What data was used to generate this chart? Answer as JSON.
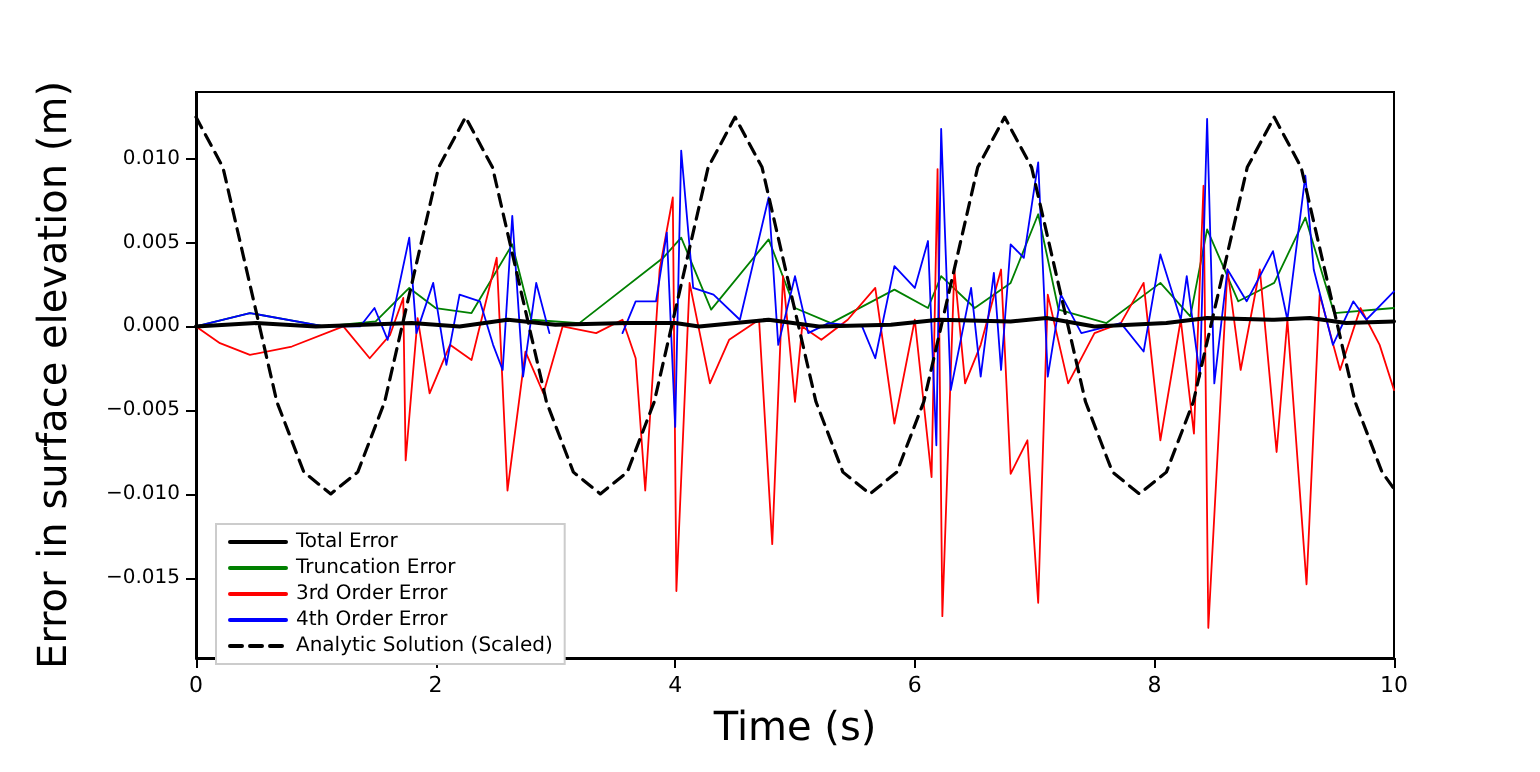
{
  "chart_data": {
    "type": "line",
    "xlabel": "Time (s)",
    "ylabel": "Error in surface elevation (m)",
    "xlim": [
      0,
      10
    ],
    "xticks": [
      0,
      2,
      4,
      6,
      8,
      10
    ],
    "ylim": [
      -0.0198,
      0.014
    ],
    "yticks": [
      {
        "value": -0.015,
        "label": "−0.015"
      },
      {
        "value": -0.01,
        "label": "−0.010"
      },
      {
        "value": -0.005,
        "label": "−0.005"
      },
      {
        "value": 0,
        "label": "0.000"
      },
      {
        "value": 0.005,
        "label": "0.005"
      },
      {
        "value": 0.01,
        "label": "0.010"
      }
    ],
    "legend": "bottom left",
    "grid": false,
    "marker": "none",
    "series": [
      {
        "name": "Total Error",
        "color": "#000000",
        "x": [
          0,
          0.5,
          1.0,
          1.8,
          2.2,
          2.6,
          3.0,
          3.6,
          4.0,
          4.2,
          4.78,
          5.2,
          5.8,
          6.2,
          6.8,
          7.1,
          7.5,
          8.1,
          8.44,
          9.0,
          9.3,
          9.6,
          10
        ],
        "values": [
          0,
          0.0002,
          0,
          0.0002,
          0,
          0.0004,
          0.0001,
          0.0002,
          0.0002,
          0,
          0.0004,
          0,
          0.0001,
          0.0004,
          0.0003,
          0.0005,
          0,
          0.0002,
          0.0005,
          0.0004,
          0.0005,
          0.0002,
          0.0003
        ]
      },
      {
        "name": "Truncation Error",
        "color": "#008000",
        "x": [
          0,
          0.45,
          1.07,
          1.5,
          1.78,
          2.0,
          2.3,
          2.64,
          2.8,
          3.2,
          3.9,
          4.05,
          4.3,
          4.78,
          5.0,
          5.3,
          5.83,
          6.11,
          6.22,
          6.5,
          6.8,
          7.03,
          7.2,
          7.6,
          8.05,
          8.3,
          8.44,
          8.7,
          9.0,
          9.26,
          9.5,
          10
        ],
        "values": [
          0,
          0.0008,
          0,
          0.0003,
          0.0023,
          0.0011,
          0.0008,
          0.0049,
          0.0004,
          0.0002,
          0.0041,
          0.0053,
          0.001,
          0.0052,
          0.0011,
          0.0002,
          0.0022,
          0.0011,
          0.003,
          0.0011,
          0.0026,
          0.0067,
          0.001,
          0.0002,
          0.0026,
          0.0006,
          0.0058,
          0.0015,
          0.0026,
          0.0065,
          0.0008,
          0.0011
        ]
      },
      {
        "name": "3rd Order Error",
        "color": "#ff0000",
        "x": [
          0,
          0.2,
          0.45,
          0.8,
          1.23,
          1.45,
          1.62,
          1.73,
          1.75,
          1.85,
          1.95,
          2.12,
          2.3,
          2.51,
          2.6,
          2.75,
          2.9,
          3.06,
          3.34,
          3.56,
          3.67,
          3.75,
          3.87,
          3.98,
          4.01,
          4.12,
          4.29,
          4.45,
          4.7,
          4.81,
          4.9,
          5.0,
          5.06,
          5.22,
          5.44,
          5.67,
          5.83,
          6.0,
          6.14,
          6.19,
          6.23,
          6.33,
          6.42,
          6.55,
          6.72,
          6.8,
          6.94,
          7.03,
          7.11,
          7.28,
          7.5,
          7.72,
          7.91,
          8.05,
          8.22,
          8.33,
          8.41,
          8.45,
          8.61,
          8.72,
          8.88,
          9.02,
          9.11,
          9.27,
          9.38,
          9.55,
          9.72,
          9.88,
          10
        ],
        "values": [
          0,
          -0.001,
          -0.0017,
          -0.0012,
          0,
          -0.0019,
          -0.0005,
          0.0017,
          -0.008,
          0.0005,
          -0.004,
          -0.0011,
          -0.002,
          0.0041,
          -0.0098,
          -0.0015,
          -0.004,
          0,
          -0.0004,
          0.0004,
          -0.0019,
          -0.0098,
          0.0034,
          0.0077,
          -0.0158,
          0.0026,
          -0.0034,
          -0.0008,
          0.0004,
          -0.013,
          0.003,
          -0.0045,
          0,
          -0.0008,
          0.0004,
          0.0023,
          -0.0058,
          0.0004,
          -0.009,
          0.0094,
          -0.0173,
          0.0034,
          -0.0034,
          -0.0011,
          0.0034,
          -0.0088,
          -0.0068,
          -0.0165,
          0.0019,
          -0.0034,
          -0.0004,
          0.0002,
          0.0026,
          -0.0068,
          0.0004,
          -0.0064,
          0.0084,
          -0.018,
          0.0034,
          -0.0026,
          0.0034,
          -0.0075,
          0.0004,
          -0.0154,
          0.0019,
          -0.0026,
          0.0011,
          -0.0011,
          -0.0038
        ]
      },
      {
        "name": "4th Order Error",
        "color": "#0000ff",
        "x": [
          0,
          0.45,
          1.07,
          1.37,
          1.49,
          1.6,
          1.78,
          1.84,
          1.98,
          2.09,
          2.2,
          2.37,
          2.48,
          2.56,
          2.64,
          2.73,
          2.84,
          2.95,
          3.12,
          3.56,
          3.67,
          3.84,
          3.93,
          4.0,
          4.05,
          4.15,
          4.32,
          4.54,
          4.78,
          4.86,
          5.0,
          5.11,
          5.28,
          5.56,
          5.67,
          5.83,
          6.0,
          6.11,
          6.18,
          6.22,
          6.3,
          6.47,
          6.55,
          6.66,
          6.72,
          6.8,
          6.91,
          7.03,
          7.11,
          7.22,
          7.39,
          7.72,
          7.91,
          8.05,
          8.22,
          8.27,
          8.38,
          8.44,
          8.5,
          8.61,
          8.77,
          8.99,
          9.11,
          9.26,
          9.33,
          9.49,
          9.66,
          9.77,
          10
        ],
        "values": [
          0,
          0.0008,
          0,
          0,
          0.0011,
          -0.0008,
          0.0053,
          -0.0004,
          0.0026,
          -0.0023,
          0.0019,
          0.0015,
          -0.0011,
          -0.0026,
          0.0066,
          -0.003,
          0.0026,
          -0.0004,
          null,
          -0.0004,
          0.0015,
          0.0015,
          0.0056,
          -0.006,
          0.0105,
          0.0023,
          0.0019,
          0.0004,
          0.0077,
          -0.0011,
          0.003,
          -0.0004,
          0.0002,
          0,
          -0.0019,
          0.0036,
          0.0023,
          0.0051,
          -0.0071,
          0.0118,
          -0.0038,
          0.0023,
          -0.003,
          0.0032,
          -0.0026,
          0.0049,
          0.0041,
          0.0098,
          -0.003,
          0.0019,
          -0.0004,
          0.0002,
          -0.0015,
          0.0043,
          0.0004,
          0.003,
          -0.003,
          0.0124,
          -0.0034,
          0.0034,
          0.0015,
          0.0045,
          0.0004,
          0.009,
          0.0034,
          -0.0011,
          0.0015,
          0.0004,
          0.0021
        ]
      },
      {
        "name": "Analytic Solution (Scaled)",
        "color": "#000000",
        "line_style": "dashed",
        "x": [
          0,
          0.225,
          0.45,
          0.675,
          0.9,
          1.125,
          1.35,
          1.575,
          1.8,
          2.025,
          2.25,
          2.475,
          2.7,
          2.925,
          3.15,
          3.375,
          3.6,
          3.825,
          4.05,
          4.275,
          4.5,
          4.725,
          4.95,
          5.175,
          5.4,
          5.625,
          5.85,
          6.075,
          6.3,
          6.525,
          6.75,
          6.975,
          7.2,
          7.425,
          7.65,
          7.875,
          8.1,
          8.325,
          8.55,
          8.775,
          9.0,
          9.225,
          9.45,
          9.675,
          9.9,
          10
        ],
        "values": [
          0.0125,
          0.0095,
          0.0025,
          -0.0045,
          -0.0087,
          -0.01,
          -0.0087,
          -0.0045,
          0.0025,
          0.0095,
          0.0125,
          0.0095,
          0.0025,
          -0.0045,
          -0.0087,
          -0.01,
          -0.0087,
          -0.0045,
          0.0025,
          0.0095,
          0.0125,
          0.0095,
          0.0025,
          -0.0045,
          -0.0087,
          -0.01,
          -0.0087,
          -0.0045,
          0.0025,
          0.0095,
          0.0125,
          0.0095,
          0.0025,
          -0.0045,
          -0.0087,
          -0.01,
          -0.0087,
          -0.0045,
          0.0025,
          0.0095,
          0.0125,
          0.0095,
          0.0025,
          -0.0045,
          -0.0087,
          -0.0097
        ]
      }
    ]
  }
}
